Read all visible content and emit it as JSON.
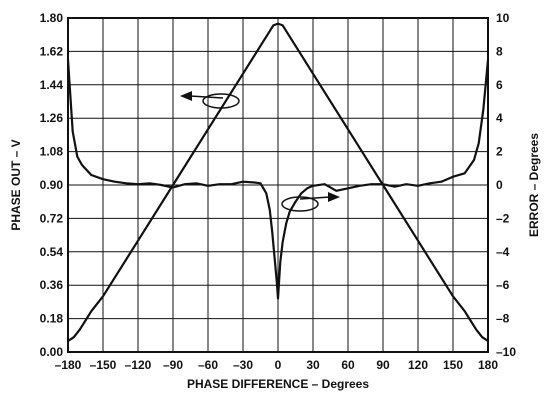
{
  "chart_data": {
    "type": "line",
    "title": "",
    "xlabel": "PHASE DIFFERENCE – Degrees",
    "ylabel_left": "PHASE OUT – V",
    "ylabel_right": "ERROR – Degrees",
    "xlim": [
      -180,
      180
    ],
    "ylim_left": [
      0,
      1.8
    ],
    "ylim_right": [
      -10,
      10
    ],
    "x_ticks": [
      "–180",
      "–150",
      "–120",
      "–90",
      "–60",
      "–30",
      "0",
      "30",
      "60",
      "90",
      "120",
      "150",
      "180"
    ],
    "x_tick_values": [
      -180,
      -150,
      -120,
      -90,
      -60,
      -30,
      0,
      30,
      60,
      90,
      120,
      150,
      180
    ],
    "y_left_ticks": [
      "0.00",
      "0.18",
      "0.36",
      "0.54",
      "0.72",
      "0.90",
      "1.08",
      "1.26",
      "1.44",
      "1.62",
      "1.80"
    ],
    "y_left_tick_values": [
      0,
      0.18,
      0.36,
      0.54,
      0.72,
      0.9,
      1.08,
      1.26,
      1.44,
      1.62,
      1.8
    ],
    "y_right_ticks": [
      "–10",
      "–8",
      "–6",
      "–4",
      "–2",
      "0",
      "2",
      "4",
      "6",
      "8",
      "10"
    ],
    "y_right_tick_values": [
      -10,
      -8,
      -6,
      -4,
      -2,
      0,
      2,
      4,
      6,
      8,
      10
    ],
    "grid": true,
    "series": [
      {
        "axis": "left",
        "x": [
          -180,
          -175,
          -170,
          -165,
          -160,
          -150,
          -120,
          -90,
          -60,
          -30,
          -15,
          -8,
          -4,
          0,
          4,
          8,
          15,
          30,
          60,
          90,
          120,
          150,
          160,
          165,
          170,
          175,
          180
        ],
        "values": [
          0.06,
          0.08,
          0.12,
          0.17,
          0.22,
          0.3,
          0.6,
          0.9,
          1.2,
          1.5,
          1.65,
          1.72,
          1.76,
          1.77,
          1.76,
          1.72,
          1.65,
          1.5,
          1.2,
          0.9,
          0.6,
          0.3,
          0.22,
          0.17,
          0.12,
          0.08,
          0.06
        ]
      },
      {
        "axis": "right",
        "x": [
          -180,
          -176,
          -172,
          -168,
          -160,
          -150,
          -140,
          -130,
          -120,
          -110,
          -100,
          -90,
          -80,
          -70,
          -60,
          -50,
          -40,
          -30,
          -20,
          -15,
          -10,
          -7,
          -5,
          -3,
          -1,
          0,
          2,
          4,
          7,
          10,
          15,
          20,
          25,
          30,
          40,
          50,
          60,
          70,
          80,
          90,
          100,
          110,
          120,
          130,
          140,
          150,
          160,
          168,
          172,
          176,
          180
        ],
        "values": [
          7.5,
          3.2,
          1.7,
          1.2,
          0.6,
          0.35,
          0.2,
          0.1,
          0.05,
          0.1,
          0,
          -0.15,
          0.05,
          0.1,
          -0.05,
          0.05,
          0.05,
          0.2,
          0.15,
          0.1,
          -0.5,
          -1.5,
          -2.8,
          -4.3,
          -5.8,
          -6.8,
          -4.6,
          -3.4,
          -2.3,
          -1.6,
          -1.0,
          -0.5,
          -0.2,
          -0.05,
          0.05,
          -0.35,
          -0.2,
          -0.05,
          0.05,
          0.05,
          -0.1,
          0.05,
          -0.05,
          0.1,
          0.2,
          0.5,
          0.7,
          1.5,
          2.5,
          4.5,
          7.5
        ]
      }
    ]
  }
}
